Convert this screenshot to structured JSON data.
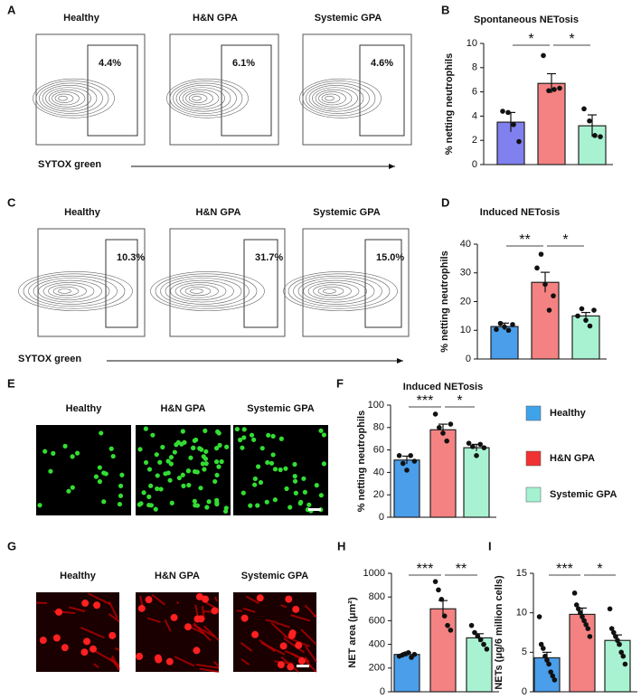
{
  "flow_A": {
    "letter": "A",
    "samples": [
      "Healthy",
      "H&N GPA",
      "Systemic GPA"
    ],
    "gates": [
      "4.4%",
      "6.1%",
      "4.6%"
    ],
    "axis": "SYTOX green"
  },
  "flow_C": {
    "letter": "C",
    "samples": [
      "Healthy",
      "H&N GPA",
      "Systemic GPA"
    ],
    "gates": [
      "10.3%",
      "31.7%",
      "15.0%"
    ],
    "axis": "SYTOX green"
  },
  "images_E": {
    "letter": "E",
    "samples": [
      "Healthy",
      "H&N GPA",
      "Systemic GPA"
    ]
  },
  "images_G": {
    "letter": "G",
    "samples": [
      "Healthy",
      "H&N GPA",
      "Systemic GPA"
    ]
  },
  "legend": [
    {
      "name": "Healthy",
      "color": "#3fa3ea"
    },
    {
      "name": "H&N GPA",
      "color": "#f03232"
    },
    {
      "name": "Systemic GPA",
      "color": "#a4f2d2"
    }
  ],
  "chart_data": [
    {
      "type": "bar",
      "panel": "B",
      "title": "Spontaneous NETosis",
      "ylabel": "% netting neutrophils",
      "colors": [
        "#8080ee",
        "#f48282",
        "#a8f2d2"
      ],
      "values": [
        3.5,
        6.7,
        3.2
      ],
      "errors": [
        0.8,
        0.8,
        0.9
      ],
      "points": [
        [
          4.4,
          4.3,
          3.3,
          1.9
        ],
        [
          9.0,
          6.1,
          6.2,
          6.3
        ],
        [
          4.6,
          3.6,
          2.4,
          2.3
        ]
      ],
      "significance": [
        "*",
        "*"
      ],
      "ylim": [
        0,
        10
      ],
      "yticks": [
        0,
        2,
        4,
        6,
        8,
        10
      ]
    },
    {
      "type": "bar",
      "panel": "D",
      "title": "Induced NETosis",
      "ylabel": "% netting neutrophils",
      "colors": [
        "#4a9eea",
        "#f48282",
        "#a8f2d2"
      ],
      "values": [
        11.3,
        26.7,
        15.0
      ],
      "errors": [
        1.2,
        3.5,
        1.2
      ],
      "points": [
        [
          10.3,
          12.4,
          11.2,
          10.0,
          12.0
        ],
        [
          31.7,
          36.5,
          26,
          17,
          22
        ],
        [
          15.0,
          17.5,
          13.5,
          11.5,
          17.0
        ]
      ],
      "significance": [
        "**",
        "*"
      ],
      "ylim": [
        0,
        40
      ],
      "yticks": [
        0,
        10,
        20,
        30,
        40
      ]
    },
    {
      "type": "bar",
      "panel": "F",
      "title": "Induced NETosis",
      "ylabel": "% netting neutrophils",
      "colors": [
        "#4a9eea",
        "#f48282",
        "#a8f2d2"
      ],
      "values": [
        51,
        78,
        62
      ],
      "errors": [
        3.5,
        5,
        3
      ],
      "points": [
        [
          55,
          48,
          42,
          55,
          50
        ],
        [
          92,
          80,
          75,
          68,
          83
        ],
        [
          66,
          63,
          55,
          65,
          62
        ]
      ],
      "significance": [
        "***",
        "*"
      ],
      "ylim": [
        0,
        100
      ],
      "yticks": [
        0,
        20,
        40,
        60,
        80,
        100
      ]
    },
    {
      "type": "bar",
      "panel": "H",
      "ylabel": "NET area (μm²)",
      "colors": [
        "#4a9eea",
        "#f48282",
        "#a8f2d2"
      ],
      "values": [
        315,
        700,
        455
      ],
      "errors": [
        15,
        70,
        35
      ],
      "points": [
        [
          300,
          310,
          320,
          330,
          290,
          315
        ],
        [
          930,
          860,
          780,
          640,
          560,
          520
        ],
        [
          560,
          500,
          470,
          440,
          400,
          360
        ]
      ],
      "significance": [
        "***",
        "**"
      ],
      "ylim": [
        0,
        1000
      ],
      "yticks": [
        0,
        200,
        400,
        600,
        800,
        1000
      ]
    },
    {
      "type": "bar",
      "panel": "I",
      "ylabel": "NETs (μg/6 million cells)",
      "colors": [
        "#4a9eea",
        "#f48282",
        "#a8f2d2"
      ],
      "values": [
        4.3,
        9.8,
        6.5
      ],
      "errors": [
        0.7,
        0.8,
        0.7
      ],
      "points": [
        [
          9.5,
          6.0,
          5.5,
          4.5,
          4.0,
          3.5,
          2.5,
          2.0,
          1.5
        ],
        [
          12.5,
          11.0,
          10.5,
          10.0,
          9.5,
          9.0,
          8.5,
          8.0,
          7.0
        ],
        [
          10.5,
          8.0,
          7.5,
          7.0,
          6.5,
          6.0,
          5.0,
          4.5,
          3.5
        ]
      ],
      "significance": [
        "***",
        "*"
      ],
      "ylim": [
        0,
        15
      ],
      "yticks": [
        0,
        5,
        10,
        15
      ]
    }
  ]
}
